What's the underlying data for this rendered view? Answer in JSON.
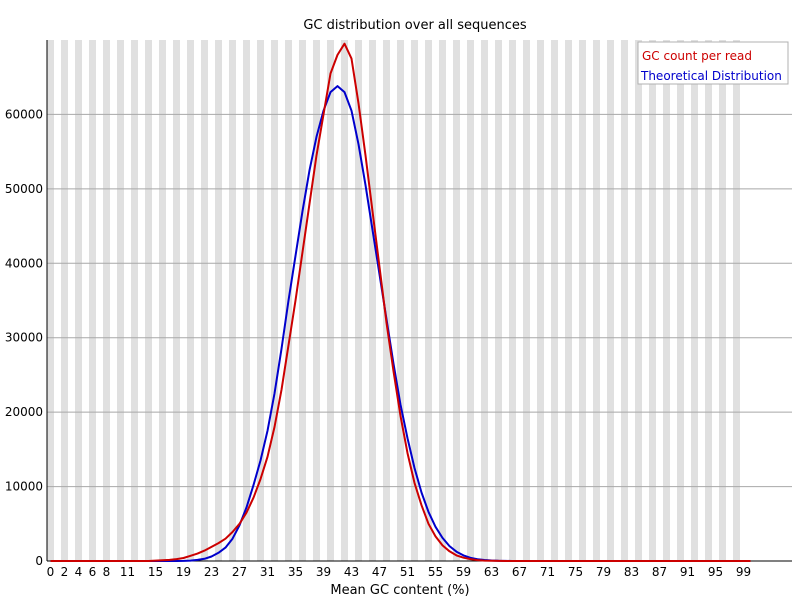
{
  "chart_data": {
    "type": "line",
    "title": "GC distribution over all sequences",
    "xlabel": "Mean GC content (%)",
    "ylabel": "",
    "xlim": [
      0,
      100
    ],
    "ylim": [
      0,
      70000
    ],
    "grid": true,
    "legend_position": "top-right",
    "x_ticks": [
      0,
      2,
      4,
      6,
      8,
      11,
      15,
      19,
      23,
      27,
      31,
      35,
      39,
      43,
      47,
      51,
      55,
      59,
      63,
      67,
      71,
      75,
      79,
      83,
      87,
      91,
      95,
      99
    ],
    "y_ticks": [
      0,
      10000,
      20000,
      30000,
      40000,
      50000,
      60000
    ],
    "x": [
      0,
      1,
      2,
      3,
      4,
      5,
      6,
      7,
      8,
      9,
      10,
      11,
      12,
      13,
      14,
      15,
      16,
      17,
      18,
      19,
      20,
      21,
      22,
      23,
      24,
      25,
      26,
      27,
      28,
      29,
      30,
      31,
      32,
      33,
      34,
      35,
      36,
      37,
      38,
      39,
      40,
      41,
      42,
      43,
      44,
      45,
      46,
      47,
      48,
      49,
      50,
      51,
      52,
      53,
      54,
      55,
      56,
      57,
      58,
      59,
      60,
      61,
      62,
      63,
      64,
      65,
      66,
      67,
      68,
      69,
      70,
      71,
      72,
      73,
      74,
      75,
      76,
      77,
      78,
      79,
      80,
      81,
      82,
      83,
      84,
      85,
      86,
      87,
      88,
      89,
      90,
      91,
      92,
      93,
      94,
      95,
      96,
      97,
      98,
      99,
      100
    ],
    "series": [
      {
        "name": "GC count per read",
        "color": "#cc0000",
        "values": [
          0,
          0,
          0,
          0,
          0,
          0,
          0,
          0,
          0,
          0,
          0,
          0,
          0,
          0,
          0,
          50,
          100,
          150,
          250,
          400,
          700,
          1000,
          1400,
          1900,
          2400,
          3000,
          3900,
          5000,
          6500,
          8500,
          11000,
          14000,
          18000,
          23000,
          29000,
          35000,
          41500,
          48000,
          54500,
          60000,
          65500,
          68000,
          69500,
          67500,
          61500,
          54500,
          47000,
          39500,
          32000,
          25500,
          19500,
          14500,
          10500,
          7500,
          5000,
          3300,
          2100,
          1300,
          750,
          450,
          250,
          120,
          60,
          30,
          15,
          0,
          0,
          0,
          0,
          0,
          0,
          0,
          0,
          0,
          0,
          0,
          0,
          0,
          0,
          0,
          0,
          0,
          0,
          0,
          0,
          0,
          0,
          0,
          0,
          0,
          0,
          0,
          0,
          0,
          0,
          0,
          0,
          0,
          0,
          0,
          0
        ]
      },
      {
        "name": "Theoretical Distribution",
        "color": "#0000cc",
        "values": [
          0,
          0,
          0,
          0,
          0,
          0,
          0,
          0,
          0,
          0,
          0,
          0,
          0,
          0,
          0,
          0,
          0,
          0,
          0,
          20,
          60,
          150,
          300,
          600,
          1100,
          1800,
          3000,
          4800,
          7200,
          10200,
          13500,
          17500,
          22500,
          28500,
          35000,
          41000,
          47000,
          52500,
          57000,
          60500,
          63000,
          63800,
          63000,
          60500,
          56000,
          50500,
          44500,
          38500,
          32500,
          26500,
          21000,
          16500,
          12500,
          9200,
          6600,
          4600,
          3100,
          2000,
          1250,
          750,
          430,
          240,
          130,
          65,
          30,
          15,
          0,
          0,
          0,
          0,
          0,
          0,
          0,
          0,
          0,
          0,
          0,
          0,
          0,
          0,
          0,
          0,
          0,
          0,
          0,
          0,
          0,
          0,
          0,
          0,
          0,
          0,
          0,
          0,
          0,
          0,
          0,
          0,
          0,
          0,
          0
        ]
      }
    ]
  }
}
